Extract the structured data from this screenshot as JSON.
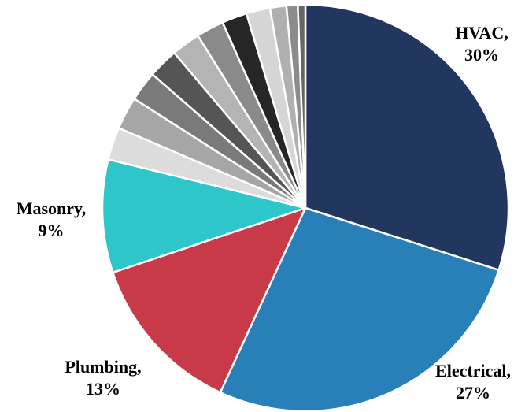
{
  "chart_data": {
    "type": "pie",
    "title": "",
    "start_angle_deg": 0,
    "direction": "clockwise",
    "slices": [
      {
        "label": "HVAC",
        "value": 30,
        "color": "#21375f",
        "label_lines": [
          "HVAC,",
          "30%"
        ]
      },
      {
        "label": "Electrical",
        "value": 27,
        "color": "#2980b9",
        "label_lines": [
          "Electrical,",
          "27%"
        ]
      },
      {
        "label": "Plumbing",
        "value": 13,
        "color": "#c93a48",
        "label_lines": [
          "Plumbing,",
          "13%"
        ]
      },
      {
        "label": "Masonry",
        "value": 9,
        "color": "#2ec7c9",
        "label_lines": [
          "Masonry,",
          "9%"
        ]
      },
      {
        "label": "",
        "value": 2.6,
        "color": "#dcdcdc",
        "label_lines": []
      },
      {
        "label": "",
        "value": 2.6,
        "color": "#a6a6a6",
        "label_lines": []
      },
      {
        "label": "",
        "value": 2.4,
        "color": "#7a7a7a",
        "label_lines": []
      },
      {
        "label": "",
        "value": 2.4,
        "color": "#555555",
        "label_lines": []
      },
      {
        "label": "",
        "value": 2.3,
        "color": "#b4b4b4",
        "label_lines": []
      },
      {
        "label": "",
        "value": 2.2,
        "color": "#8a8a8a",
        "label_lines": []
      },
      {
        "label": "",
        "value": 2.0,
        "color": "#262626",
        "label_lines": []
      },
      {
        "label": "",
        "value": 1.9,
        "color": "#d6d6d6",
        "label_lines": []
      },
      {
        "label": "",
        "value": 1.3,
        "color": "#b0b0b0",
        "label_lines": []
      },
      {
        "label": "",
        "value": 0.9,
        "color": "#8c8c8c",
        "label_lines": []
      },
      {
        "label": "",
        "value": 0.6,
        "color": "#666666",
        "label_lines": []
      }
    ]
  }
}
